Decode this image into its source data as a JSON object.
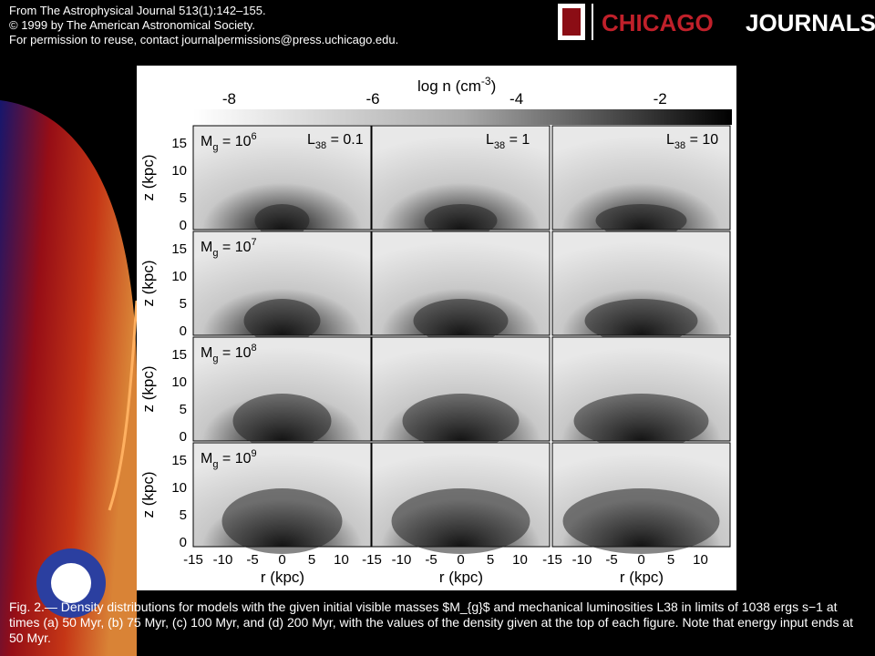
{
  "header": {
    "lines": [
      "From The Astrophysical Journal 513(1):142–155.",
      "© 1999 by The American Astronomical Society.",
      "For permission to reuse, contact journalpermissions@press.uchicago.edu."
    ],
    "logo": {
      "first": "CHICAGO",
      "second": "JOURNALS"
    }
  },
  "figure": {
    "colorbar": {
      "label": {
        "text": "log n (cm",
        "exp": "-3",
        "close": ")"
      },
      "ticks": [
        "-8",
        "-6",
        "-4",
        "-2"
      ]
    },
    "rows": [
      {
        "symbol": "M",
        "sub": "g",
        "rest": " = 10",
        "exp": "6"
      },
      {
        "symbol": "M",
        "sub": "g",
        "rest": " = 10",
        "exp": "7"
      },
      {
        "symbol": "M",
        "sub": "g",
        "rest": " = 10",
        "exp": "8"
      },
      {
        "symbol": "M",
        "sub": "g",
        "rest": " = 10",
        "exp": "9"
      }
    ],
    "columns": [
      {
        "symbol": "L",
        "sub": "38",
        "rest": " = 0.1"
      },
      {
        "symbol": "L",
        "sub": "38",
        "rest": " = 1"
      },
      {
        "symbol": "L",
        "sub": "38",
        "rest": " = 10"
      }
    ],
    "y_label": "z (kpc)",
    "y_ticks": [
      "15",
      "10",
      "5",
      "0"
    ],
    "x_label": "r (kpc)",
    "x_ticks": [
      "-15",
      "-10",
      "-5",
      "0",
      "5",
      "10"
    ]
  },
  "caption": "Fig. 2.— Density distributions for models with the given initial visible masses $M_{g}$ and mechanical luminosities L38 in limits of 1038 ergs s−1 at times (a) 50 Myr, (b) 75 Myr, (c) 100 Myr, and (d) 200 Myr, with the values of the density given at the top of each figure. Note that energy input ends at 50 Myr."
}
